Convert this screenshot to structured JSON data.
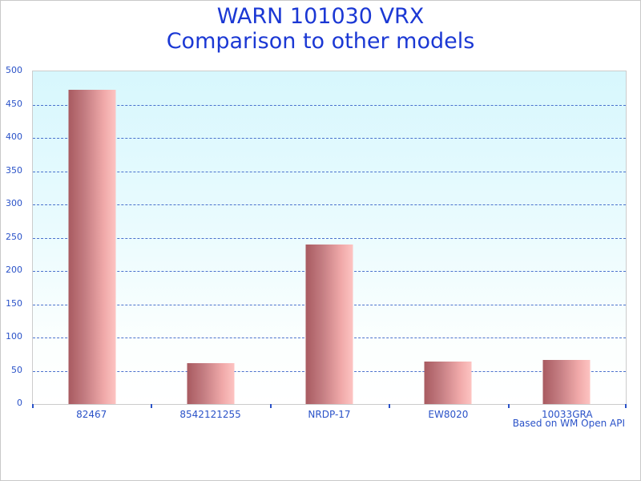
{
  "chart_data": {
    "type": "bar",
    "title": "WARN 101030 VRX",
    "subtitle": "Comparison to other models",
    "categories": [
      "82467",
      "8542121255",
      "NRDP-17",
      "EW8020",
      "10033GRA"
    ],
    "values": [
      472,
      62,
      240,
      64,
      66
    ],
    "xlabel": "",
    "ylabel": "",
    "ylim": [
      0,
      500
    ],
    "ytick_step": 50,
    "grid": "horizontal-dashed",
    "legend": "none",
    "footnote": "Based on WM Open API",
    "colors": {
      "title": "#1b38d4",
      "axis_label": "#2a52c8",
      "gridline": "#3a64c8",
      "bar_gradient_left": "#a85a60",
      "bar_gradient_right": "#fdc4c2",
      "plot_bg_top": "#d7f7fd",
      "plot_bg_bottom": "#ffffff",
      "plot_border": "#cccccc"
    }
  }
}
